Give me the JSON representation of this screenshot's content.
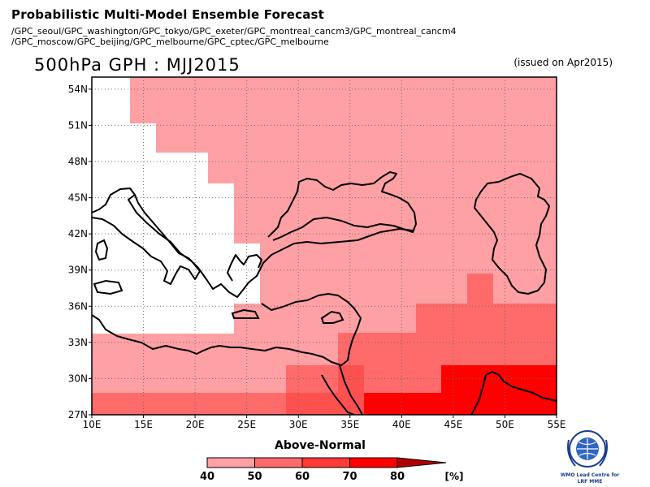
{
  "header": {
    "title": "Probabilistic Multi-Model Ensemble Forecast",
    "models_line1": "/GPC_seoul/GPC_washington/GPC_tokyo/GPC_exeter/GPC_montreal_cancm3/GPC_montreal_cancm4",
    "models_line2": "/GPC_moscow/GPC_beijing/GPC_melbourne/GPC_cptec/GPC_melbourne"
  },
  "map": {
    "title": "500hPa GPH : MJJ2015",
    "issued": "(issued on Apr2015)",
    "lon_range": [
      10,
      55
    ],
    "lat_range": [
      27,
      55
    ],
    "lon_ticks": [
      "10E",
      "15E",
      "20E",
      "25E",
      "30E",
      "35E",
      "40E",
      "45E",
      "50E",
      "55E"
    ],
    "lat_ticks": [
      "27N",
      "30N",
      "33N",
      "36N",
      "39N",
      "42N",
      "45N",
      "48N",
      "51N",
      "54N"
    ],
    "coastline_color": "#000000"
  },
  "legend": {
    "title": "Above-Normal",
    "labels": [
      "40",
      "50",
      "60",
      "70",
      "80"
    ],
    "unit": "[%]",
    "colors": [
      "#ffa0a4",
      "#ff6a6a",
      "#ff3838",
      "#ff0000"
    ]
  },
  "logo": {
    "line1": "WMO Lead Centre for",
    "line2": "LRF MME"
  }
}
